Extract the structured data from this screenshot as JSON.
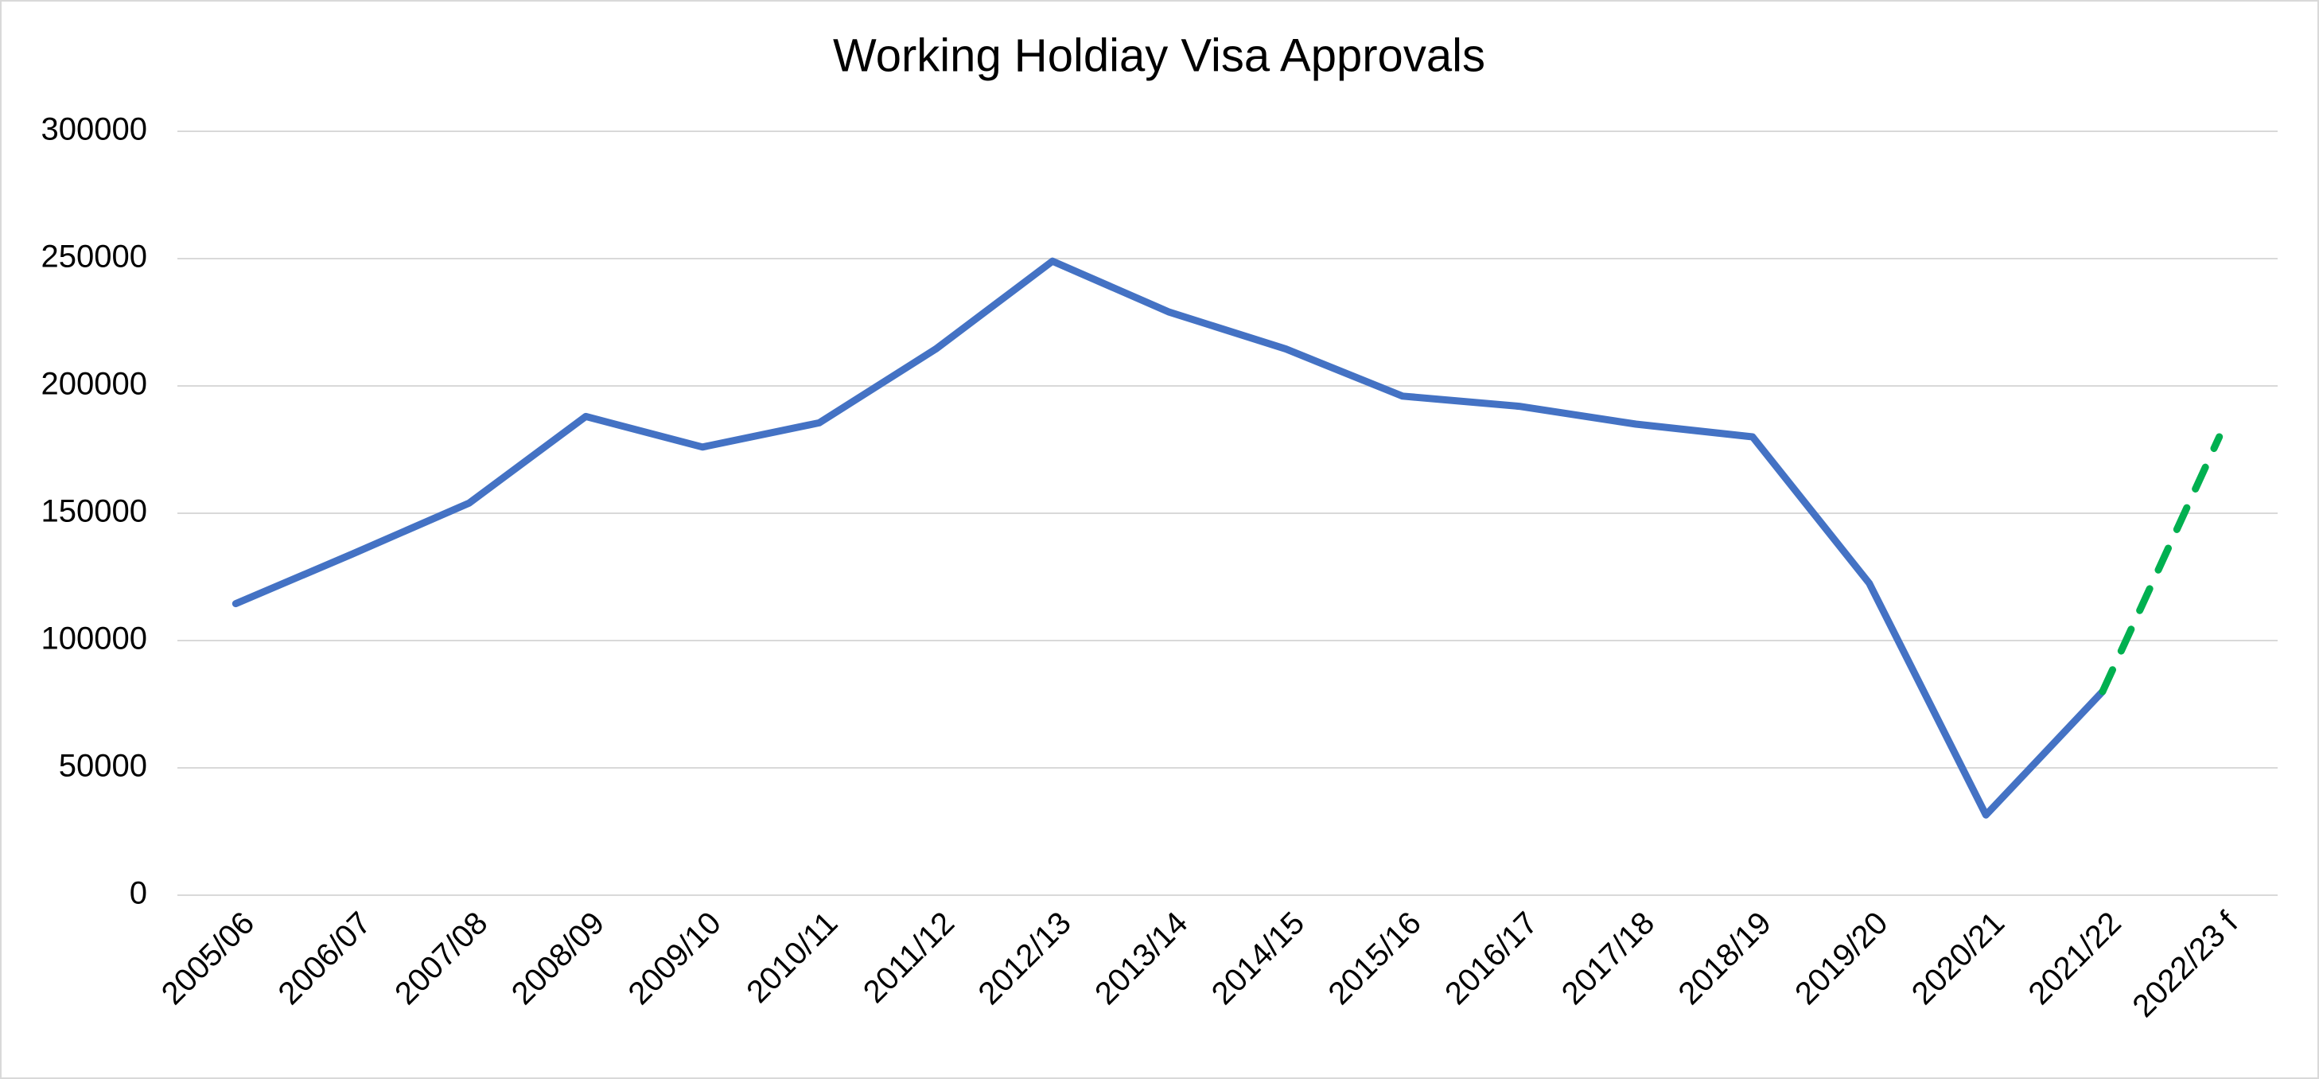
{
  "chart_data": {
    "type": "line",
    "title": "Working Holdiay Visa Approvals",
    "categories": [
      "2005/06",
      "2006/07",
      "2007/08",
      "2008/09",
      "2009/10",
      "2010/11",
      "2011/12",
      "2012/13",
      "2013/14",
      "2014/15",
      "2015/16",
      "2016/17",
      "2017/18",
      "2018/19",
      "2019/20",
      "2020/21",
      "2021/22",
      "2022/23 f"
    ],
    "series": [
      {
        "color": "#4472c4",
        "dash": false,
        "values": [
          114500,
          134000,
          154000,
          188000,
          176000,
          185500,
          214500,
          249000,
          229000,
          214500,
          196000,
          192000,
          185000,
          180000,
          122500,
          31500,
          80000,
          null
        ]
      },
      {
        "color": "#00b050",
        "dash": true,
        "values": [
          null,
          null,
          null,
          null,
          null,
          null,
          null,
          null,
          null,
          null,
          null,
          null,
          null,
          null,
          null,
          null,
          80000,
          180000
        ]
      }
    ],
    "ylim": [
      0,
      300000
    ],
    "yticks": [
      0,
      50000,
      100000,
      150000,
      200000,
      250000,
      300000
    ],
    "grid": true
  }
}
